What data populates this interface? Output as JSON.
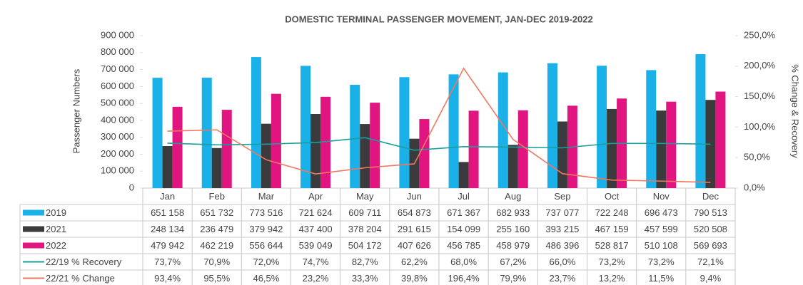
{
  "chart_data": {
    "type": "bar",
    "title": "DOMESTIC TERMINAL PASSENGER MOVEMENT, JAN-DEC 2019-2022",
    "y_label": "Passenger Numbers",
    "y2_label": "% Change & Recovery",
    "categories": [
      "Jan",
      "Feb",
      "Mar",
      "Apr",
      "May",
      "Jun",
      "Jul",
      "Aug",
      "Sep",
      "Oct",
      "Nov",
      "Dec"
    ],
    "ylim": [
      0,
      900000
    ],
    "yticks": [
      0,
      {
        "value": 100000,
        "label": "100 000"
      },
      {
        "value": 200000,
        "label": "200 000"
      },
      {
        "value": 300000,
        "label": "300 000"
      },
      {
        "value": 400000,
        "label": "400 000"
      },
      {
        "value": 500000,
        "label": "500 000"
      },
      {
        "value": 600000,
        "label": "600 000"
      },
      {
        "value": 700000,
        "label": "700 000"
      },
      {
        "value": 800000,
        "label": "800 000"
      },
      {
        "value": 900000,
        "label": "900 000"
      }
    ],
    "y2lim": [
      0,
      250
    ],
    "y2ticks": [
      {
        "value": 0,
        "label": "0,0%"
      },
      {
        "value": 50,
        "label": "50,0%"
      },
      {
        "value": 100,
        "label": "100,0%"
      },
      {
        "value": 150,
        "label": "150,0%"
      },
      {
        "value": 200,
        "label": "200,0%"
      },
      {
        "value": 250,
        "label": "250,0%"
      }
    ],
    "series": [
      {
        "name": "2019",
        "type": "bar",
        "color": "#1ab0e8",
        "values": [
          651158,
          651732,
          773516,
          721624,
          609711,
          654873,
          671367,
          682933,
          737077,
          722248,
          696473,
          790513
        ],
        "value_labels": [
          "651 158",
          "651 732",
          "773 516",
          "721 624",
          "609 711",
          "654 873",
          "671 367",
          "682 933",
          "737 077",
          "722 248",
          "696 473",
          "790 513"
        ]
      },
      {
        "name": "2021",
        "type": "bar",
        "color": "#3b3b3d",
        "values": [
          248134,
          236479,
          379942,
          437400,
          378204,
          291615,
          154099,
          255160,
          393215,
          467159,
          457599,
          520508
        ],
        "value_labels": [
          "248 134",
          "236 479",
          "379 942",
          "437 400",
          "378 204",
          "291 615",
          "154 099",
          "255 160",
          "393 215",
          "467 159",
          "457 599",
          "520 508"
        ]
      },
      {
        "name": "2022",
        "type": "bar",
        "color": "#e0157f",
        "values": [
          479942,
          462219,
          556644,
          539049,
          504172,
          407626,
          456785,
          458979,
          486396,
          528817,
          510108,
          569693
        ],
        "value_labels": [
          "479 942",
          "462 219",
          "556 644",
          "539 049",
          "504 172",
          "407 626",
          "456 785",
          "458 979",
          "486 396",
          "528 817",
          "510 108",
          "569 693"
        ]
      },
      {
        "name": "22/19 % Recovery",
        "type": "line",
        "axis": "y2",
        "color": "#1a9e9e",
        "values": [
          73.7,
          70.9,
          72.0,
          74.7,
          82.7,
          62.2,
          68.0,
          67.2,
          66.0,
          73.2,
          73.2,
          72.1
        ],
        "value_labels": [
          "73,7%",
          "70,9%",
          "72,0%",
          "74,7%",
          "82,7%",
          "62,2%",
          "68,0%",
          "67,2%",
          "66,0%",
          "73,2%",
          "73,2%",
          "72,1%"
        ]
      },
      {
        "name": "22/21 % Change",
        "type": "line",
        "axis": "y2",
        "color": "#f07860",
        "values": [
          93.4,
          95.5,
          46.5,
          23.2,
          33.3,
          39.8,
          196.4,
          79.9,
          23.7,
          13.2,
          11.5,
          9.4
        ],
        "value_labels": [
          "93,4%",
          "95,5%",
          "46,5%",
          "23,2%",
          "33,3%",
          "39,8%",
          "196,4%",
          "79,9%",
          "23,7%",
          "13,2%",
          "11,5%",
          "9,4%"
        ]
      }
    ]
  }
}
